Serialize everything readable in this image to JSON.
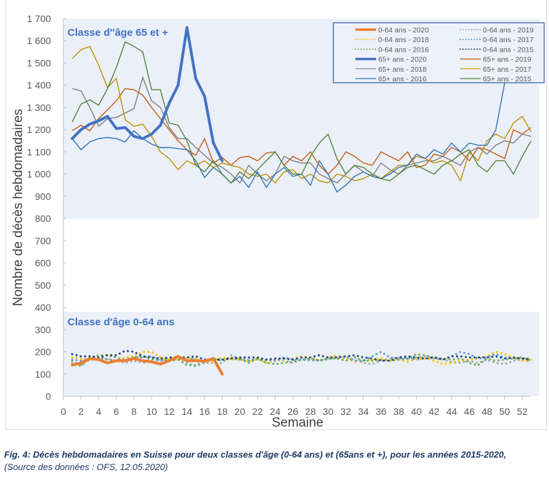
{
  "chart_data": {
    "type": "line",
    "xlabel": "Semaine",
    "ylabel": "Nombre de décès hebdomadaires",
    "xlim": [
      0,
      53
    ],
    "ylim": [
      0,
      1700
    ],
    "x_ticks": [
      0,
      2,
      4,
      6,
      8,
      10,
      12,
      14,
      16,
      18,
      20,
      22,
      24,
      26,
      28,
      30,
      32,
      34,
      36,
      38,
      40,
      42,
      44,
      46,
      48,
      50,
      52
    ],
    "y_ticks": [
      0,
      100,
      200,
      300,
      400,
      500,
      600,
      700,
      800,
      900,
      1000,
      1100,
      1200,
      1300,
      1400,
      1500,
      1600,
      1700
    ],
    "y_tick_labels": [
      "0",
      "100",
      "200",
      "300",
      "400",
      "500",
      "600",
      "700",
      "800",
      "900",
      "1 000",
      "1 100",
      "1 200",
      "1 300",
      "1 400",
      "1 500",
      "1 600",
      "1 700"
    ],
    "grid": false,
    "legend_position": "top-right",
    "panels": [
      {
        "title": "Classe d''âge 65 et +",
        "range": [
          800,
          1700
        ]
      },
      {
        "title": "Classe d'âge 0-64 ans",
        "range": [
          0,
          380
        ]
      }
    ],
    "series": [
      {
        "name": "0-64 ans - 2020",
        "color": "#ED7D31",
        "style": "thick",
        "values": [
          140,
          150,
          170,
          165,
          150,
          160,
          160,
          170,
          160,
          155,
          145,
          160,
          180,
          160,
          160,
          158,
          170,
          100
        ]
      },
      {
        "name": "0-64 ans - 2019",
        "color": "#A5A5A5",
        "style": "dotted",
        "values": [
          150,
          140,
          165,
          165,
          170,
          160,
          150,
          160,
          150,
          165,
          160,
          160,
          165,
          150,
          135,
          150,
          150,
          150,
          185,
          170,
          165,
          165,
          160,
          165,
          160,
          150,
          165,
          160,
          165,
          165,
          175,
          170,
          165,
          150,
          145,
          160,
          170,
          175,
          165,
          175,
          180,
          170,
          165,
          155,
          150,
          160,
          150,
          165,
          150,
          145,
          160,
          165,
          155
        ]
      },
      {
        "name": "0-64 ans - 2018",
        "color": "#FFC000",
        "style": "dotted",
        "values": [
          175,
          170,
          165,
          180,
          165,
          160,
          175,
          180,
          200,
          200,
          175,
          165,
          165,
          170,
          170,
          155,
          160,
          175,
          165,
          165,
          155,
          170,
          150,
          160,
          165,
          170,
          180,
          175,
          160,
          175,
          185,
          170,
          155,
          160,
          165,
          170,
          160,
          165,
          155,
          170,
          170,
          160,
          145,
          150,
          160,
          165,
          170,
          180,
          200,
          190,
          175,
          160,
          165
        ]
      },
      {
        "name": "0-64 ans - 2017",
        "color": "#5B9BD5",
        "style": "dotted",
        "values": [
          165,
          160,
          170,
          175,
          165,
          160,
          165,
          175,
          175,
          180,
          160,
          175,
          165,
          175,
          165,
          155,
          165,
          165,
          170,
          165,
          160,
          170,
          165,
          160,
          175,
          165,
          165,
          165,
          160,
          170,
          175,
          180,
          160,
          160,
          180,
          200,
          175,
          170,
          175,
          165,
          170,
          175,
          165,
          180,
          200,
          190,
          170,
          175,
          190,
          175,
          170,
          170,
          170
        ]
      },
      {
        "name": "0-64 ans - 2016",
        "color": "#70AD47",
        "style": "dotted",
        "values": [
          160,
          135,
          175,
          185,
          185,
          175,
          160,
          175,
          180,
          165,
          170,
          160,
          165,
          140,
          140,
          155,
          170,
          160,
          175,
          170,
          150,
          170,
          150,
          145,
          150,
          155,
          165,
          170,
          160,
          170,
          170,
          160,
          175,
          160,
          160,
          165,
          160,
          165,
          170,
          190,
          185,
          175,
          170,
          165,
          170,
          150,
          140,
          170,
          160,
          165,
          170,
          175,
          160
        ]
      },
      {
        "name": "0-64 ans - 2015",
        "color": "#264478",
        "style": "dotted",
        "values": [
          190,
          180,
          180,
          175,
          185,
          185,
          205,
          200,
          180,
          175,
          170,
          175,
          175,
          175,
          180,
          165,
          165,
          165,
          170,
          175,
          175,
          175,
          165,
          170,
          170,
          165,
          175,
          175,
          185,
          175,
          175,
          180,
          185,
          175,
          170,
          160,
          160,
          175,
          180,
          175,
          170,
          175,
          165,
          180,
          180,
          175,
          175,
          175,
          180,
          170,
          175,
          170,
          165
        ]
      },
      {
        "name": "65+ ans - 2020",
        "color": "#4472C4",
        "style": "thick",
        "values": [
          1160,
          1200,
          1225,
          1240,
          1260,
          1205,
          1210,
          1170,
          1160,
          1180,
          1220,
          1320,
          1400,
          1660,
          1430,
          1350,
          1140,
          1060
        ]
      },
      {
        "name": "65+ ans - 2019",
        "color": "#C55A11",
        "style": "thin",
        "values": [
          1195,
          1220,
          1195,
          1250,
          1290,
          1330,
          1385,
          1380,
          1355,
          1300,
          1250,
          1200,
          1150,
          1110,
          1085,
          1160,
          1050,
          1075,
          1040,
          1075,
          1080,
          1060,
          1095,
          1100,
          1040,
          1080,
          1060,
          1100,
          1040,
          1000,
          1040,
          1100,
          1080,
          1050,
          1040,
          1100,
          1080,
          1060,
          1100,
          1030,
          1040,
          1090,
          1080,
          1120,
          1100,
          1060,
          1120,
          1110,
          1090,
          1070,
          1200,
          1180,
          1210
        ]
      },
      {
        "name": "65+ ans - 2018",
        "color": "#7F7F7F",
        "style": "thin",
        "values": [
          1385,
          1375,
          1300,
          1215,
          1250,
          1255,
          1275,
          1295,
          1435,
          1330,
          1300,
          1210,
          1160,
          1160,
          1120,
          1085,
          1050,
          1030,
          1000,
          960,
          1040,
          1000,
          970,
          1000,
          1080,
          1060,
          1050,
          1050,
          1000,
          980,
          960,
          1000,
          1040,
          1010,
          990,
          1050,
          1020,
          1000,
          1040,
          1050,
          1060,
          1060,
          1080,
          1060,
          1040,
          1100,
          1120,
          1090,
          1130,
          1150,
          1140,
          1180,
          1170
        ]
      },
      {
        "name": "65+ ans - 2017",
        "color": "#BF9000",
        "style": "thin",
        "values": [
          1520,
          1560,
          1575,
          1490,
          1390,
          1430,
          1245,
          1215,
          1225,
          1170,
          1100,
          1070,
          1020,
          1060,
          1040,
          1060,
          1030,
          1050,
          1040,
          1030,
          1000,
          990,
          1000,
          960,
          1010,
          1020,
          980,
          1000,
          970,
          960,
          1000,
          990,
          970,
          980,
          1000,
          980,
          1010,
          1040,
          1040,
          1080,
          1070,
          1050,
          1060,
          1040,
          970,
          1100,
          1060,
          1150,
          1180,
          1160,
          1230,
          1260,
          1190
        ]
      },
      {
        "name": "65+ ans - 2016",
        "color": "#2E75B6",
        "style": "thin",
        "values": [
          1160,
          1110,
          1145,
          1160,
          1165,
          1160,
          1145,
          1195,
          1160,
          1135,
          1120,
          1120,
          1115,
          1110,
          1060,
          985,
          1030,
          1000,
          960,
          990,
          940,
          1010,
          940,
          1000,
          1030,
          990,
          1000,
          950,
          1060,
          1000,
          920,
          950,
          990,
          1010,
          990,
          980,
          1000,
          1030,
          1040,
          1090,
          1070,
          1110,
          1090,
          1140,
          1100,
          1140,
          1130,
          1130,
          1200,
          1410
        ]
      },
      {
        "name": "65+ ans - 2015",
        "color": "#548235",
        "style": "thin",
        "values": [
          1235,
          1315,
          1335,
          1310,
          1385,
          1480,
          1595,
          1575,
          1550,
          1380,
          1380,
          1230,
          1220,
          1150,
          1040,
          1010,
          1060,
          1000,
          960,
          1010,
          980,
          1020,
          1060,
          1100,
          1040,
          1000,
          1000,
          1080,
          1140,
          1180,
          1070,
          1000,
          1040,
          1030,
          1000,
          980,
          970,
          1000,
          1030,
          1040,
          1020,
          1000,
          1040,
          1060,
          1090,
          1110,
          1040,
          1010,
          1060,
          1060,
          1000,
          1080,
          1150
        ]
      }
    ]
  },
  "caption": {
    "fig_label": "Fig. 4",
    "title": ": Décès hebdomadaires en Suisse pour deux classes d'âge (0-64 ans) et (65ans et +), pour les années 2015-2020,",
    "source": "(Source des données : OFS, 12.05.2020)"
  }
}
